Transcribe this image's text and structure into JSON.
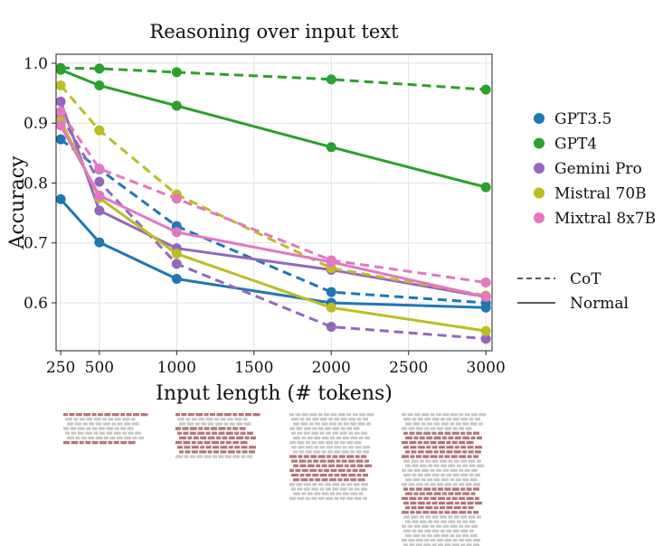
{
  "chart_data": {
    "type": "line",
    "title": "Reasoning over input text",
    "xlabel": "Input length (# tokens)",
    "ylabel": "Accuracy",
    "xlim": [
      220,
      3040
    ],
    "ylim": [
      0.52,
      1.015
    ],
    "x_ticks": [
      250,
      500,
      1000,
      1500,
      2000,
      2500,
      3000
    ],
    "y_ticks": [
      0.6,
      0.7,
      0.8,
      0.9,
      1.0
    ],
    "y_tick_labels": [
      "0.6",
      "0.7",
      "0.8",
      "0.9",
      "1.0"
    ],
    "grid": true,
    "legend_position": "right",
    "x": [
      250,
      500,
      1000,
      2000,
      3000
    ],
    "series": [
      {
        "name": "GPT3.5",
        "color": "#1f77b4",
        "normal": [
          0.773,
          0.701,
          0.64,
          0.6,
          0.592
        ],
        "cot": [
          0.873,
          0.823,
          0.728,
          0.618,
          0.6
        ]
      },
      {
        "name": "GPT4",
        "color": "#2ca02c",
        "normal": [
          0.989,
          0.963,
          0.929,
          0.86,
          0.793
        ],
        "cot": [
          0.992,
          0.991,
          0.985,
          0.973,
          0.956
        ]
      },
      {
        "name": "Gemini Pro",
        "color": "#9467bd",
        "normal": [
          0.936,
          0.754,
          0.691,
          0.655,
          0.61
        ],
        "cot": [
          0.913,
          0.802,
          0.665,
          0.56,
          0.54
        ]
      },
      {
        "name": "Mistral 70B",
        "color": "#bcbd22",
        "normal": [
          0.904,
          0.775,
          0.682,
          0.592,
          0.553
        ],
        "cot": [
          0.963,
          0.888,
          0.781,
          0.658,
          0.612
        ]
      },
      {
        "name": "Mixtral 8x7B",
        "color": "#e377c2",
        "normal": [
          0.896,
          0.779,
          0.718,
          0.668,
          0.61
        ],
        "cot": [
          0.919,
          0.824,
          0.774,
          0.671,
          0.634
        ]
      }
    ],
    "style_legend": [
      {
        "label": "CoT",
        "dash": "dashed"
      },
      {
        "label": "Normal",
        "dash": "solid"
      }
    ],
    "input_illustrations": [
      {
        "x": 250,
        "relevant_color": "#b5787b",
        "filler_color": "#c9c9c9"
      },
      {
        "x": 1000,
        "relevant_color": "#b5787b",
        "filler_color": "#c9c9c9"
      },
      {
        "x": 2000,
        "relevant_color": "#b5787b",
        "filler_color": "#c9c9c9"
      },
      {
        "x": 3000,
        "relevant_color": "#b5787b",
        "filler_color": "#c9c9c9"
      }
    ]
  }
}
